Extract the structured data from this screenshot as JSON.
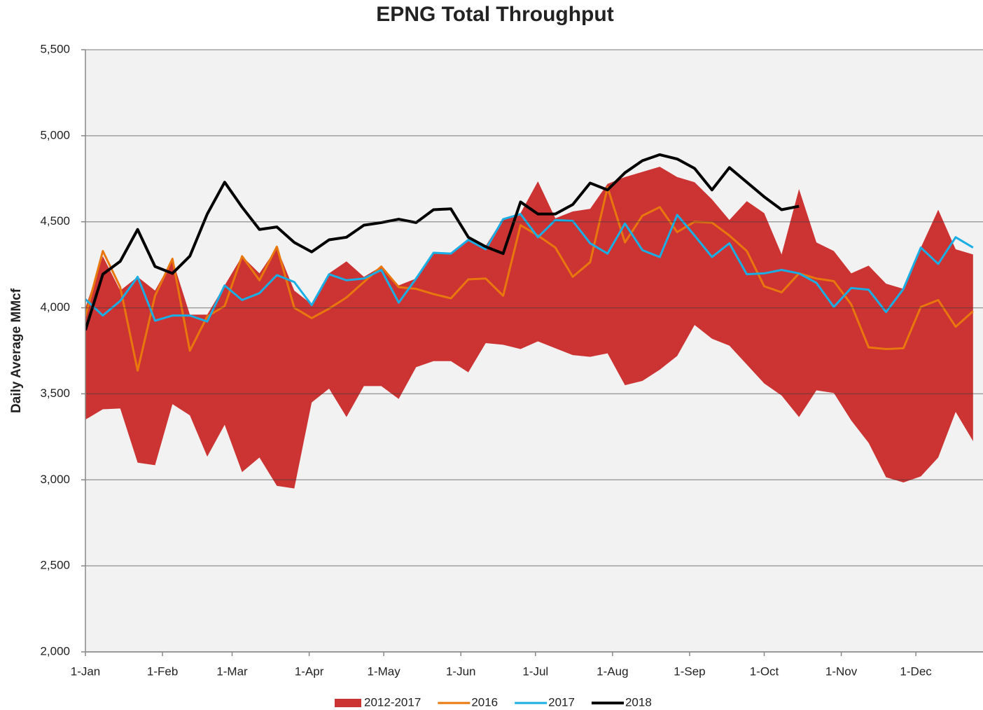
{
  "chart_data": {
    "type": "line",
    "title": "EPNG Total Throughput",
    "y_label": "Daily Average MMcf",
    "xlim": [
      0,
      361
    ],
    "xticks": [
      {
        "value": 0,
        "label": "1-Jan"
      },
      {
        "value": 31,
        "label": "1-Feb"
      },
      {
        "value": 59,
        "label": "1-Mar"
      },
      {
        "value": 90,
        "label": "1-Apr"
      },
      {
        "value": 120,
        "label": "1-May"
      },
      {
        "value": 151,
        "label": "1-Jun"
      },
      {
        "value": 181,
        "label": "1-Jul"
      },
      {
        "value": 212,
        "label": "1-Aug"
      },
      {
        "value": 243,
        "label": "1-Sep"
      },
      {
        "value": 273,
        "label": "1-Oct"
      },
      {
        "value": 304,
        "label": "1-Nov"
      },
      {
        "value": 334,
        "label": "1-Dec"
      }
    ],
    "ylim": [
      2000,
      5500
    ],
    "yticks": [
      {
        "value": 2000,
        "label": "2,000"
      },
      {
        "value": 2500,
        "label": "2,500"
      },
      {
        "value": 3000,
        "label": "3,000"
      },
      {
        "value": 3500,
        "label": "3,500"
      },
      {
        "value": 4000,
        "label": "4,000"
      },
      {
        "value": 4500,
        "label": "4,500"
      },
      {
        "value": 5000,
        "label": "5,000"
      },
      {
        "value": 5500,
        "label": "5,500"
      }
    ],
    "grid": true,
    "legend": "bottom",
    "x": [
      0,
      7,
      14,
      21,
      28,
      35,
      42,
      49,
      56,
      63,
      70,
      77,
      84,
      91,
      98,
      105,
      112,
      119,
      126,
      133,
      140,
      147,
      154,
      161,
      168,
      175,
      182,
      189,
      196,
      203,
      210,
      217,
      224,
      231,
      238,
      245,
      252,
      259,
      266,
      273,
      280,
      287,
      294,
      301,
      308,
      315,
      322,
      329,
      336,
      343,
      350,
      357
    ],
    "series": [
      {
        "name": "2012-2017",
        "color": "#cc3333",
        "type": "range",
        "upper": [
          4000,
          4300,
          4100,
          4180,
          4100,
          4280,
          3960,
          3960,
          4130,
          4300,
          4200,
          4350,
          4100,
          4020,
          4200,
          4270,
          4180,
          4240,
          4130,
          4170,
          4320,
          4320,
          4390,
          4360,
          4520,
          4550,
          4735,
          4520,
          4560,
          4575,
          4720,
          4760,
          4790,
          4820,
          4760,
          4730,
          4630,
          4510,
          4620,
          4550,
          4310,
          4690,
          4380,
          4330,
          4200,
          4245,
          4140,
          4110,
          4350,
          4570,
          4340,
          4310
        ],
        "lower": [
          3350,
          3410,
          3415,
          3100,
          3085,
          3440,
          3375,
          3135,
          3320,
          3045,
          3130,
          2965,
          2950,
          3450,
          3530,
          3365,
          3545,
          3545,
          3470,
          3655,
          3690,
          3690,
          3625,
          3795,
          3785,
          3760,
          3805,
          3765,
          3725,
          3715,
          3735,
          3550,
          3575,
          3640,
          3720,
          3900,
          3820,
          3780,
          3670,
          3560,
          3490,
          3365,
          3520,
          3505,
          3345,
          3215,
          3015,
          2985,
          3020,
          3130,
          3395,
          3225
        ]
      },
      {
        "name": "2016",
        "color": "#e8770e",
        "width": 3,
        "values": [
          3950,
          4330,
          4120,
          3635,
          4070,
          4285,
          3750,
          3950,
          4010,
          4300,
          4160,
          4355,
          4000,
          3940,
          3995,
          4060,
          4150,
          4240,
          4120,
          4110,
          4080,
          4055,
          4165,
          4170,
          4070,
          4480,
          4420,
          4350,
          4180,
          4265,
          4700,
          4380,
          4535,
          4585,
          4440,
          4500,
          4495,
          4420,
          4330,
          4125,
          4090,
          4200,
          4170,
          4155,
          4020,
          3770,
          3760,
          3765,
          4005,
          4045,
          3890,
          3980
        ]
      },
      {
        "name": "2017",
        "color": "#1aaee5",
        "width": 3,
        "values": [
          4050,
          3955,
          4040,
          4180,
          3925,
          3955,
          3955,
          3920,
          4130,
          4045,
          4085,
          4190,
          4150,
          4015,
          4195,
          4160,
          4170,
          4220,
          4030,
          4170,
          4320,
          4315,
          4395,
          4340,
          4515,
          4545,
          4410,
          4510,
          4505,
          4375,
          4315,
          4490,
          4335,
          4295,
          4540,
          4420,
          4295,
          4375,
          4195,
          4200,
          4220,
          4200,
          4145,
          4005,
          4115,
          4105,
          3975,
          4110,
          4350,
          4255,
          4410,
          4350
        ]
      },
      {
        "name": "2018",
        "color": "#000000",
        "width": 4,
        "values": [
          3870,
          4195,
          4270,
          4455,
          4240,
          4200,
          4300,
          4545,
          4730,
          4585,
          4455,
          4470,
          4380,
          4325,
          4395,
          4410,
          4480,
          4495,
          4515,
          4495,
          4570,
          4575,
          4410,
          4355,
          4315,
          4615,
          4545,
          4545,
          4600,
          4725,
          4685,
          4785,
          4855,
          4890,
          4865,
          4810,
          4685,
          4815,
          4730,
          4645,
          4570,
          4590,
          null,
          null,
          null,
          null,
          null,
          null,
          null,
          null,
          null,
          null
        ]
      }
    ]
  }
}
